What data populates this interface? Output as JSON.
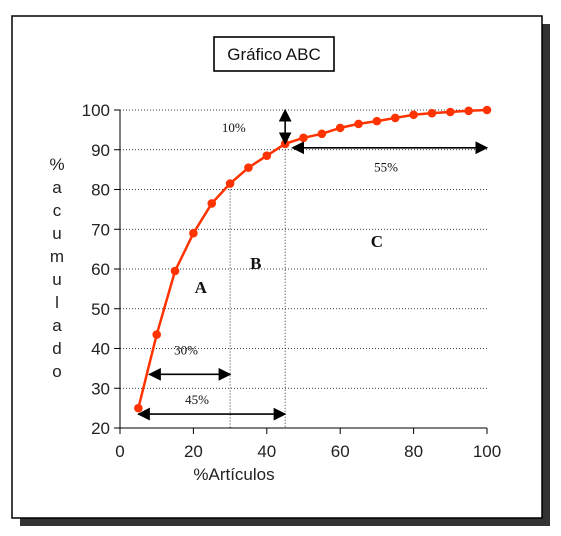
{
  "chart_data": {
    "type": "line",
    "title": "Gráfico ABC",
    "xlabel": "%Artículos",
    "ylabel": "%acumulado",
    "xlim": [
      0,
      100
    ],
    "ylim": [
      20,
      100
    ],
    "x_ticks": [
      0,
      20,
      40,
      60,
      80,
      100
    ],
    "y_ticks": [
      20,
      30,
      40,
      50,
      60,
      70,
      80,
      90,
      100
    ],
    "grid": "horizontal dotted",
    "series": [
      {
        "color": "#ff3300",
        "x": [
          5,
          10,
          15,
          20,
          25,
          30,
          35,
          40,
          45,
          50,
          55,
          60,
          65,
          70,
          75,
          80,
          85,
          90,
          95,
          100
        ],
        "y": [
          25,
          43.5,
          59.5,
          69,
          76.5,
          81.5,
          85.5,
          88.5,
          91.5,
          93,
          94,
          95.5,
          96.5,
          97.2,
          98,
          98.8,
          99.2,
          99.5,
          99.8,
          100
        ]
      }
    ],
    "divisions": [
      30,
      45
    ],
    "zones": [
      {
        "label": "A",
        "x": 22,
        "y": 54
      },
      {
        "label": "B",
        "x": 37,
        "y": 60
      },
      {
        "label": "C",
        "x": 70,
        "y": 65.5
      }
    ],
    "annotations": [
      {
        "text": "10%",
        "arrow": "vertical",
        "x": 45,
        "from": 91.5,
        "to": 100,
        "label_x": 31,
        "label_y": 94.5
      },
      {
        "text": "55%",
        "arrow": "horizontal",
        "y": 90.5,
        "from": 47,
        "to": 100,
        "label_x": 72.5,
        "label_y": 84.5
      },
      {
        "text": "30%",
        "arrow": "horizontal",
        "y": 33.5,
        "from": 8,
        "to": 30,
        "label_x": 18,
        "label_y": 38.5
      },
      {
        "text": "45%",
        "arrow": "horizontal",
        "y": 23.5,
        "from": 5,
        "to": 45,
        "label_x": 21,
        "label_y": 26
      }
    ]
  }
}
